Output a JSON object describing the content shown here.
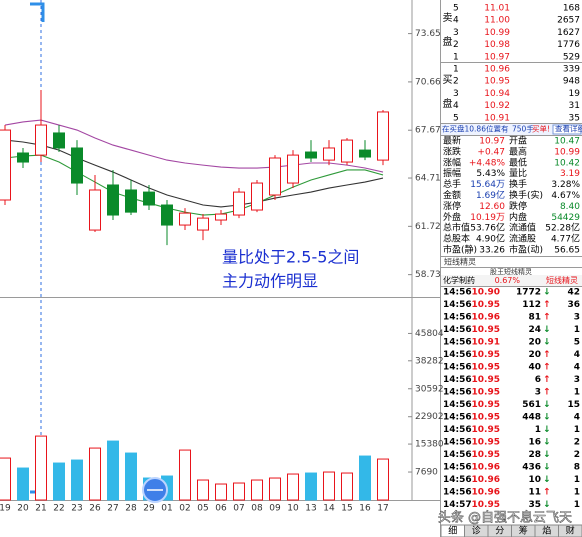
{
  "chart_data": [
    {
      "type": "candlestick",
      "categories": [
        "19",
        "20",
        "21",
        "22",
        "23",
        "26",
        "27",
        "28",
        "29",
        "01",
        "02",
        "05",
        "06",
        "07",
        "08",
        "09",
        "10",
        "13",
        "14",
        "15",
        "16",
        "17"
      ],
      "open": [
        63.35,
        66.26,
        66.13,
        67.5,
        66.57,
        61.49,
        64.28,
        63.97,
        63.84,
        63.04,
        61.8,
        61.49,
        62.11,
        62.42,
        62.73,
        63.66,
        64.4,
        66.32,
        65.82,
        65.7,
        66.44,
        65.82
      ],
      "high": [
        67.99,
        66.57,
        70.16,
        67.99,
        67.06,
        64.9,
        65.21,
        64.59,
        64.28,
        63.35,
        62.85,
        62.48,
        62.73,
        64.09,
        64.59,
        66.13,
        66.44,
        67.06,
        67.06,
        67.19,
        67.06,
        68.92
      ],
      "low": [
        63.04,
        65.33,
        65.7,
        66.32,
        63.66,
        61.37,
        62.11,
        62.42,
        62.73,
        60.56,
        61.49,
        60.87,
        61.8,
        62.23,
        62.6,
        63.35,
        64.09,
        65.7,
        65.51,
        65.51,
        65.82,
        65.51
      ],
      "close": [
        67.68,
        65.7,
        67.99,
        66.57,
        64.4,
        63.97,
        62.42,
        62.6,
        63.04,
        61.8,
        62.54,
        62.23,
        62.48,
        63.84,
        64.4,
        65.95,
        66.13,
        65.95,
        66.57,
        67.06,
        66.01,
        68.8
      ],
      "up_color": "#e8141b",
      "down_color": "#0a8a2a",
      "series": [
        {
          "color": "#a347a3",
          "values": [
            67.99,
            68.18,
            68.3,
            67.99,
            67.68,
            67.19,
            66.75,
            66.44,
            66.13,
            65.82,
            65.64,
            65.51,
            65.39,
            65.33,
            65.33,
            65.39,
            65.51,
            65.64,
            65.64,
            65.51,
            65.33,
            65.08
          ]
        },
        {
          "color": "#333333",
          "values": [
            67.06,
            66.94,
            66.75,
            66.44,
            65.95,
            65.51,
            65.08,
            64.59,
            64.09,
            63.66,
            63.35,
            63.04,
            62.92,
            63.04,
            63.22,
            63.47,
            63.66,
            63.84,
            64.09,
            64.28,
            64.46,
            64.71
          ]
        },
        {
          "color": "#2f9a3a",
          "values": [
            65.95,
            66.07,
            66.13,
            65.7,
            65.08,
            64.46,
            63.84,
            63.47,
            63.16,
            62.85,
            62.6,
            62.42,
            62.48,
            62.73,
            63.16,
            63.66,
            64.15,
            64.59,
            64.9,
            65.21,
            65.21,
            64.9
          ]
        }
      ],
      "ylim": [
        57.47,
        75.73
      ],
      "yticks": [
        58.73,
        61.72,
        64.71,
        67.67,
        70.66,
        73.65
      ]
    },
    {
      "type": "bar",
      "values": [
        11535,
        8789,
        17577,
        10162,
        10986,
        14281,
        16204,
        12909,
        6042,
        6592,
        13732,
        5493,
        4394,
        4669,
        5493,
        6042,
        7141,
        7416,
        7690,
        7416,
        12085,
        11261
      ],
      "up_color": "#e8141b",
      "down_color": "#33b8e8",
      "ylim": [
        0,
        55000
      ],
      "yticks": [
        7690,
        15380,
        22902,
        30592,
        38282,
        45804
      ]
    }
  ],
  "annotation": [
    "量比处于2.5-5之间",
    "主力动作明显"
  ],
  "order_book": {
    "sell_label": "卖盘",
    "buy_label": "买盘",
    "sell": [
      [
        "5",
        "11.01",
        "168"
      ],
      [
        "4",
        "11.00",
        "2657"
      ],
      [
        "3",
        "10.99",
        "1627"
      ],
      [
        "2",
        "10.98",
        "1776"
      ],
      [
        "1",
        "10.97",
        "529"
      ]
    ],
    "buy": [
      [
        "1",
        "10.96",
        "339"
      ],
      [
        "2",
        "10.95",
        "948"
      ],
      [
        "3",
        "10.94",
        "19"
      ],
      [
        "4",
        "10.92",
        "31"
      ],
      [
        "5",
        "10.91",
        "35"
      ]
    ]
  },
  "notice": [
    "在买盘10.86位置有",
    "750手",
    "买单!",
    "查看详细"
  ],
  "quote": [
    {
      "cells": [
        "最新",
        "10.97",
        "开盘",
        "10.47"
      ],
      "colors": [
        "#e8141b",
        "#0a8a2a"
      ]
    },
    {
      "cells": [
        "涨跌",
        "+0.47",
        "最高",
        "10.99"
      ],
      "colors": [
        "#e8141b",
        "#e8141b"
      ]
    },
    {
      "cells": [
        "涨幅",
        "+4.48%",
        "最低",
        "10.42"
      ],
      "colors": [
        "#e8141b",
        "#0a8a2a"
      ]
    },
    {
      "cells": [
        "振幅",
        "5.43%",
        "量比",
        "3.19"
      ],
      "colors": [
        "#000000",
        "#e8141b"
      ]
    },
    {
      "cells": [
        "总手",
        "15.64万",
        "换手",
        "3.28%"
      ],
      "colors": [
        "#1a3fb0",
        "#000000"
      ]
    },
    {
      "cells": [
        "金额",
        "1.69亿",
        "换手(实)",
        "4.67%"
      ],
      "colors": [
        "#1a3fb0",
        "#000000"
      ]
    },
    {
      "cells": [
        "涨停",
        "12.60",
        "跌停",
        "8.40"
      ],
      "colors": [
        "#e8141b",
        "#0a8a2a"
      ]
    },
    {
      "cells": [
        "外盘",
        "10.19万",
        "内盘",
        "54429"
      ],
      "colors": [
        "#e8141b",
        "#0a8a2a"
      ]
    },
    {
      "cells": [
        "总市值",
        "53.76亿",
        "流通值",
        "52.28亿"
      ],
      "colors": [
        "#000000",
        "#000000"
      ]
    },
    {
      "cells": [
        "总股本",
        "4.90亿",
        "流通股",
        "4.77亿"
      ],
      "colors": [
        "#000000",
        "#000000"
      ]
    },
    {
      "cells": [
        "市盈(静)",
        "33.26",
        "市盈(动)",
        "56.65"
      ],
      "colors": [
        "#000000",
        "#000000"
      ]
    }
  ],
  "sprite_title": "短线精灵",
  "sprite_header": "股王短线精灵",
  "sector": [
    "化学制药",
    "0.67%",
    "短线精灵"
  ],
  "arrow_colors": {
    "↑": "#e8141b",
    "↓": "#0a8a2a"
  },
  "ticks": [
    [
      "14:56",
      "10.90",
      "1772",
      "↓",
      "42"
    ],
    [
      "14:56",
      "10.95",
      "112",
      "↑",
      "36"
    ],
    [
      "14:56",
      "10.96",
      "81",
      "↑",
      "3"
    ],
    [
      "14:56",
      "10.95",
      "24",
      "↓",
      "1"
    ],
    [
      "14:56",
      "10.91",
      "20",
      "↓",
      "5"
    ],
    [
      "14:56",
      "10.95",
      "20",
      "↑",
      "4"
    ],
    [
      "14:56",
      "10.95",
      "40",
      "↑",
      "4"
    ],
    [
      "14:56",
      "10.95",
      "6",
      "↑",
      "3"
    ],
    [
      "14:56",
      "10.95",
      "3",
      "↑",
      "1"
    ],
    [
      "14:56",
      "10.95",
      "561",
      "↓",
      "15"
    ],
    [
      "14:56",
      "10.95",
      "448",
      "↓",
      "4"
    ],
    [
      "14:56",
      "10.95",
      "1",
      "↓",
      "1"
    ],
    [
      "14:56",
      "10.95",
      "16",
      "↓",
      "2"
    ],
    [
      "14:56",
      "10.95",
      "28",
      "↓",
      "2"
    ],
    [
      "14:56",
      "10.96",
      "436",
      "↓",
      "8"
    ],
    [
      "14:56",
      "10.96",
      "10",
      "↓",
      "1"
    ],
    [
      "14:56",
      "10.96",
      "11",
      "↑",
      "1"
    ],
    [
      "14:57",
      "10.95",
      "35",
      "↓",
      "1"
    ]
  ],
  "tabs": [
    "细",
    "诊",
    "分",
    "筹",
    "焰",
    "财"
  ],
  "watermark": "头条 @自强不息云飞天"
}
